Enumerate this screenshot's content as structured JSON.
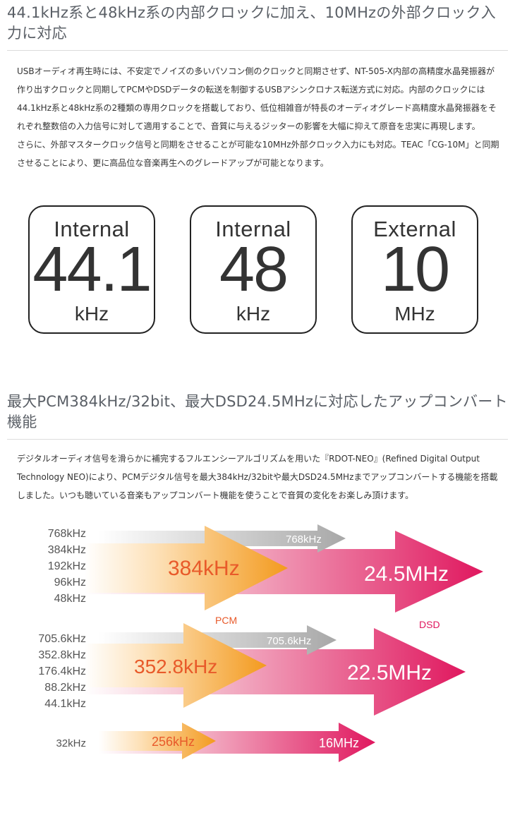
{
  "section1": {
    "heading": "44.1kHz系と48kHz系の内部クロックに加え、10MHzの外部クロック入力に対応",
    "paragraph1": "USBオーディオ再生時には、不安定でノイズの多いパソコン側のクロックと同期させず、NT-505-X内部の高精度水晶発振器が作り出すクロックと同期してPCMやDSDデータの転送を制御するUSBアシンクロナス転送方式に対応。内部のクロックには44.1kHz系と48kHz系の2種類の専用クロックを搭載しており、低位相雑音が特長のオーディオグレード高精度水晶発振器をそれぞれ整数倍の入力信号に対して適用することで、音質に与えるジッターの影響を大幅に抑えて原音を忠実に再現します。",
    "paragraph2": "さらに、外部マスタークロック信号と同期をさせることが可能な10MHz外部クロック入力にも対応。TEAC「CG-10M」と同期させることにより、更に高品位な音楽再生へのグレードアップが可能となります。",
    "clocks": [
      {
        "label": "Internal",
        "value": "44.1",
        "unit": "kHz"
      },
      {
        "label": "Internal",
        "value": "48",
        "unit": "kHz"
      },
      {
        "label": "External",
        "value": "10",
        "unit": "MHz"
      }
    ]
  },
  "section2": {
    "heading": "最大PCM384kHz/32bit、最大DSD24.5MHzに対応したアップコンバート機能",
    "paragraph": "デジタルオーディオ信号を滑らかに補完するフルエンシーアルゴリズムを用いた『RDOT-NEO』(Refined Digital Output Technology NEO)により、PCMデジタル信号を最大384kHz/32bitや最大DSD24.5MHzまでアップコンバートする機能を搭載しました。いつも聴いている音楽もアップコンバート機能を使うことで音質の変化をお楽しみ頂けます。"
  },
  "upconvert": {
    "colors": {
      "pcm": "#f39a1e",
      "dsd": "#e0185f",
      "grey": "#a8a8a8",
      "label": "#e85a2a"
    },
    "pcm_label": "PCM",
    "dsd_label": "DSD",
    "groups": [
      {
        "inputs": [
          "768kHz",
          "384kHz",
          "192kHz",
          "96kHz",
          "48kHz"
        ],
        "grey_output": "768kHz",
        "pcm_output": "384kHz",
        "dsd_output": "24.5MHz"
      },
      {
        "inputs": [
          "705.6kHz",
          "352.8kHz",
          "176.4kHz",
          "88.2kHz",
          "44.1kHz"
        ],
        "grey_output": "705.6kHz",
        "pcm_output": "352.8kHz",
        "dsd_output": "22.5MHz"
      },
      {
        "inputs": [
          "32kHz"
        ],
        "pcm_output": "256kHz",
        "dsd_output": "16MHz"
      }
    ]
  }
}
